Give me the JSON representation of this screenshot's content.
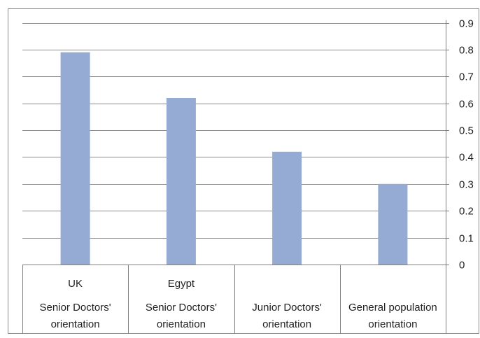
{
  "chart_data": {
    "type": "bar",
    "categories": [
      {
        "top": "UK",
        "line1": "Senior Doctors'",
        "line2": "orientation"
      },
      {
        "top": "Egypt",
        "line1": "Senior Doctors'",
        "line2": "orientation"
      },
      {
        "top": "",
        "line1": "Junior Doctors'",
        "line2": "orientation"
      },
      {
        "top": "",
        "line1": "General population",
        "line2": "orientation"
      }
    ],
    "values": [
      0.79,
      0.62,
      0.42,
      0.3
    ],
    "ylim": [
      0,
      0.9
    ],
    "yticks": [
      "0",
      "0.1",
      "0.2",
      "0.3",
      "0.4",
      "0.5",
      "0.6",
      "0.7",
      "0.8",
      "0.9"
    ],
    "yaxis_position": "right",
    "grid": true,
    "bar_color": "#95abd3",
    "gridline_color": "#8c8c8c",
    "axis_color": "#7f7f7f"
  }
}
